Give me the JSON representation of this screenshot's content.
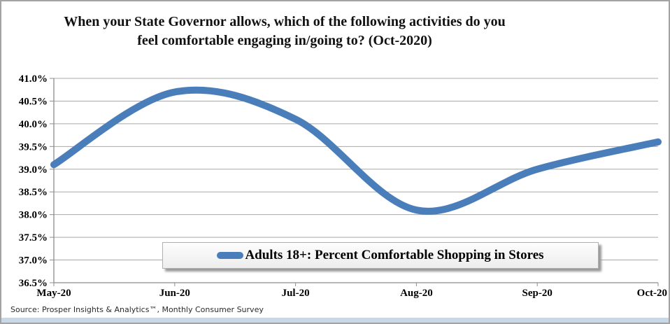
{
  "title": {
    "line1": "When your State Governor allows, which of the following activities do you",
    "line2": "feel comfortable engaging in/going to? (Oct-2020)"
  },
  "legend": {
    "label": "Adults 18+: Percent Comfortable Shopping in Stores",
    "marker_color": "#4a7ebb"
  },
  "source": "Source: Prosper Insights & Analytics™, Monthly Consumer Survey",
  "colors": {
    "line": "#4a7ebb",
    "gridline": "#a8a8a8",
    "axis": "#8c8c8c",
    "label": "#000000",
    "bottom_strip": "#ccd7e5",
    "frame_border": "#a3a3a3"
  },
  "chart_data": {
    "type": "line",
    "title": "When your State Governor allows, which of the following activities do you feel comfortable engaging in/going to? (Oct-2020)",
    "categories": [
      "May-20",
      "Jun-20",
      "Jul-20",
      "Aug-20",
      "Sep-20",
      "Oct-20"
    ],
    "series": [
      {
        "name": "Adults 18+: Percent Comfortable Shopping in Stores",
        "values": [
          39.1,
          40.7,
          40.1,
          38.1,
          39.0,
          39.6
        ]
      }
    ],
    "ylim": [
      36.5,
      41.0
    ],
    "ytick_step": 0.5,
    "ytick_labels": [
      "41.0%",
      "40.5%",
      "40.0%",
      "39.5%",
      "39.0%",
      "38.5%",
      "38.0%",
      "37.5%",
      "37.0%",
      "36.5%"
    ],
    "ytick_format": "percent_1dp",
    "grid": true,
    "smooth": true,
    "legend_position": "bottom-center"
  }
}
